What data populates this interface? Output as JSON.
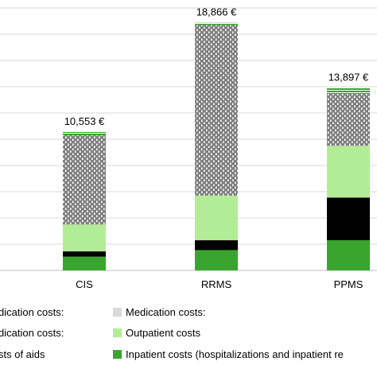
{
  "chart_data": {
    "type": "bar",
    "stacked": true,
    "title": "",
    "xlabel": "",
    "ylabel": "",
    "ylim": [
      0,
      20000
    ],
    "grid": true,
    "legend_position": "bottom",
    "categories": [
      "CIS",
      "RRMS",
      "PPMS"
    ],
    "totals": [
      10553,
      18866,
      13897
    ],
    "total_labels": [
      "10,553 €",
      "18,866 €",
      "13,897 €"
    ],
    "series": [
      {
        "key": "inpatient",
        "name": "Inpatient costs (hospitalizations and inpatient re",
        "color": "#3aa52e",
        "pattern": "solid",
        "values": [
          1050,
          1550,
          2300
        ]
      },
      {
        "key": "black",
        "name": "",
        "color": "#000000",
        "pattern": "solid",
        "values": [
          400,
          750,
          3250
        ]
      },
      {
        "key": "outpatient",
        "name": "Outpatient costs",
        "color": "#b3ec96",
        "pattern": "solid",
        "values": [
          2050,
          3400,
          3950
        ]
      },
      {
        "key": "medication_dotted",
        "name": "",
        "color": "#7f7f7f",
        "pattern": "dots",
        "values": [
          6800,
          13000,
          3950
        ]
      },
      {
        "key": "aids",
        "name": "",
        "color": "#3aa52e",
        "pattern": "lines",
        "values": [
          253,
          166,
          447
        ]
      }
    ]
  },
  "legend": {
    "rows": [
      [
        {
          "label": "dication costs:",
          "color": "",
          "pattern": "none"
        },
        {
          "label": "Medication costs:",
          "color": "#d9d9d9",
          "pattern": "solid"
        }
      ],
      [
        {
          "label": "dication costs:",
          "color": "",
          "pattern": "none"
        },
        {
          "label": "Outpatient costs",
          "color": "#b3ec96",
          "pattern": "solid"
        }
      ],
      [
        {
          "label": "sts of aids",
          "color": "",
          "pattern": "none"
        },
        {
          "label": "Inpatient costs (hospitalizations and inpatient re",
          "color": "#3aa52e",
          "pattern": "solid"
        }
      ]
    ]
  }
}
